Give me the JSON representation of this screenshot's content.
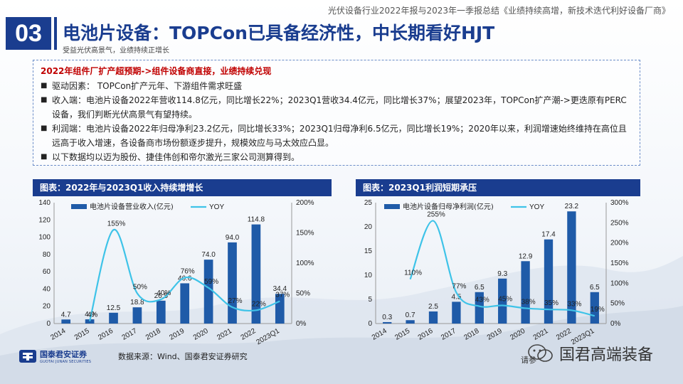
{
  "header": {
    "doc_title": "光伏设备行业2022年报与2023年一季报总结《业绩持续高增，新技术迭代利好设备厂商》",
    "section_number": "03",
    "title": "电池片设备：TOPCon已具备经济性，中长期看好HJT",
    "subtitle": "受益光伏高景气，业绩持续正增长"
  },
  "summary": {
    "heading": "2022年组件厂扩产超预期->组件设备商直接，业绩持续兑现",
    "bullets": [
      "驱动因素：  TOPCon扩产元年、下游组件需求旺盛",
      "收入端：电池片设备2022年营收114.8亿元，同比增长22%；2023Q1营收34.4亿元，同比增长37%；展望2023年，TOPCon扩产潮->更迭原有PERC设备，我们判断光伏高景气有望持续。",
      "利润端：电池片设备2022年归母净利23.2亿元，同比增长33%；2023Q1归母净利6.5亿元，同比增长19%；2020年以来，利润增速始终维持在高位且远高于收入增速，各设备商市场份额逐步提升，规模效应与马太效应凸显。",
      "以下数据均以迈为股份、捷佳伟创和帝尔激光三家公司测算得到。"
    ]
  },
  "chart_data": [
    {
      "type": "bar",
      "title": "图表：2022年与2023Q1收入持续增增长",
      "categories": [
        "2014",
        "2015",
        "2016",
        "2017",
        "2018",
        "2019",
        "2020",
        "2021",
        "2022",
        "2023Q1"
      ],
      "series": [
        {
          "name": "电池片设备营业收入(亿元)",
          "kind": "bar",
          "axis": "left",
          "values": [
            4.7,
            4.9,
            12.5,
            18.8,
            26.5,
            46.6,
            74.0,
            94.0,
            114.8,
            34.4
          ],
          "labels": [
            "4.7",
            "4.9",
            "12.5",
            "18.8",
            "26.5",
            "46.6",
            "74.0",
            "94.0",
            "114.8",
            "34.4"
          ]
        },
        {
          "name": "YOY",
          "kind": "line",
          "axis": "right",
          "values": [
            null,
            4,
            155,
            50,
            40,
            76,
            59,
            27,
            22,
            37
          ],
          "labels": [
            "",
            "4%",
            "155%",
            "50%",
            "40%",
            "76%",
            "59%",
            "27%",
            "22%",
            "37%"
          ]
        }
      ],
      "left_ticks": [
        "0",
        "20",
        "40",
        "60",
        "80",
        "100",
        "120",
        "140"
      ],
      "right_ticks": [
        "0%",
        "50%",
        "100%",
        "150%",
        "200%"
      ],
      "ylim": [
        0,
        140
      ],
      "y2lim": [
        0,
        200
      ]
    },
    {
      "type": "bar",
      "title": "图表：2023Q1利润短期承压",
      "categories": [
        "2014",
        "2015",
        "2016",
        "2017",
        "2018",
        "2019",
        "2020",
        "2021",
        "2022",
        "2023Q1"
      ],
      "series": [
        {
          "name": "电池片设备归母净利润(亿元)",
          "kind": "bar",
          "axis": "left",
          "values": [
            0.3,
            0.7,
            2.5,
            4.5,
            6.5,
            9.3,
            12.9,
            17.4,
            23.2,
            6.5
          ],
          "labels": [
            "0.3",
            "0.7",
            "2.5",
            "4.5",
            "6.5",
            "9.3",
            "12.9",
            "17.4",
            "23.2",
            "6.5"
          ]
        },
        {
          "name": "YOY",
          "kind": "line",
          "axis": "right",
          "values": [
            null,
            110,
            255,
            77,
            43,
            45,
            38,
            35,
            33,
            19
          ],
          "labels": [
            "",
            "110%",
            "255%",
            "77%",
            "43%",
            "45%",
            "38%",
            "35%",
            "33%",
            "19%"
          ]
        }
      ],
      "left_ticks": [
        "0",
        "5",
        "10",
        "15",
        "20",
        "25"
      ],
      "right_ticks": [
        "0%",
        "50%",
        "100%",
        "150%",
        "200%",
        "250%",
        "300%"
      ],
      "ylim": [
        0,
        25
      ],
      "y2lim": [
        0,
        300
      ]
    }
  ],
  "footer": {
    "source": "数据来源：Wind、国泰君安证券研究",
    "logo_cn": "国泰君安证券",
    "logo_en": "GUOTAI JUNAN SECURITIES",
    "watermark": "国君高端装备",
    "watermark_small": "请参"
  },
  "colors": {
    "brand": "#1a3d8f",
    "bar": "#1f5ba8",
    "line": "#3ec3e8",
    "accent_red": "#c00000"
  }
}
